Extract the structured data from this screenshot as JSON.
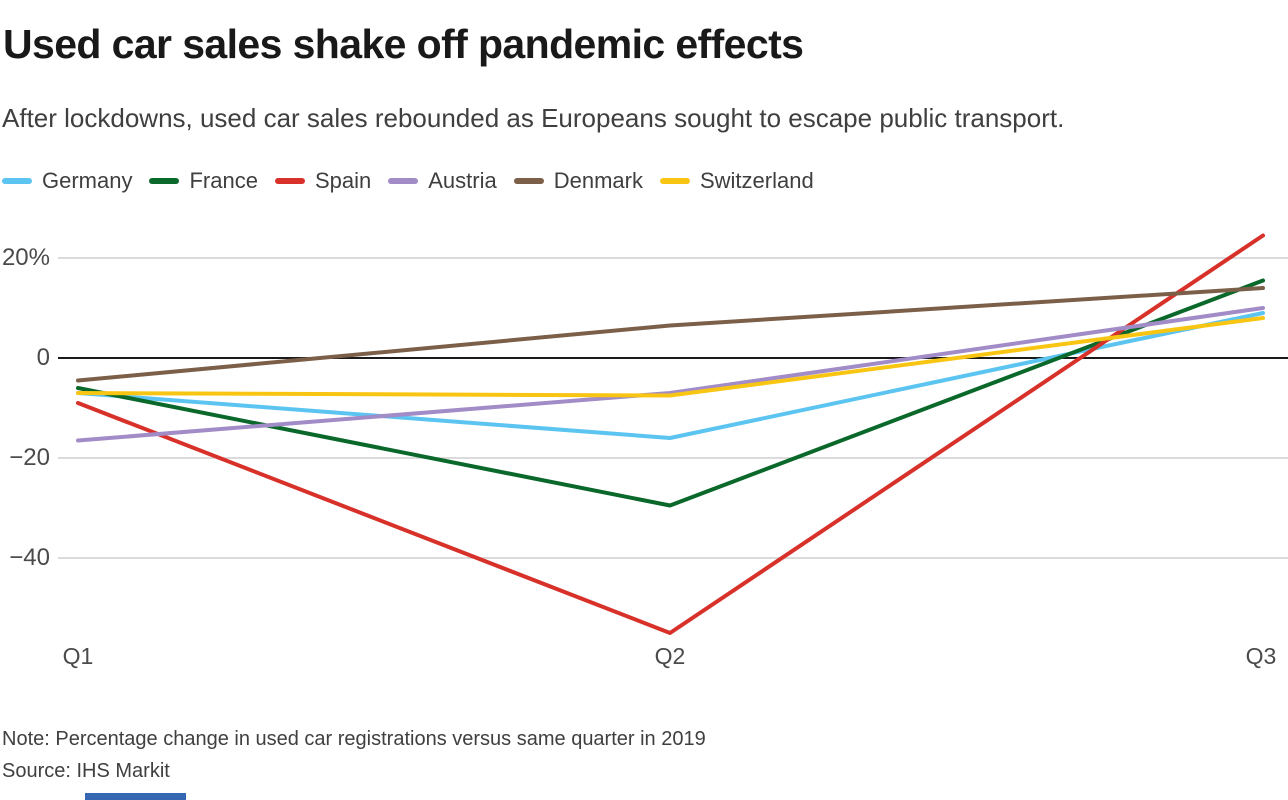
{
  "chart_data": {
    "type": "line",
    "title": "Used car sales shake off pandemic effects",
    "subtitle": "After lockdowns, used car sales rebounded as Europeans sought to escape public transport.",
    "categories": [
      "Q1",
      "Q2",
      "Q3"
    ],
    "series": [
      {
        "name": "Germany",
        "color": "#5bc4f0",
        "values": [
          -7,
          -16,
          9
        ]
      },
      {
        "name": "France",
        "color": "#0a682b",
        "values": [
          -6,
          -29.5,
          15.5
        ]
      },
      {
        "name": "Spain",
        "color": "#d7312a",
        "values": [
          -9,
          -55,
          24.5
        ]
      },
      {
        "name": "Austria",
        "color": "#a18cc8",
        "values": [
          -16.5,
          -7,
          10
        ]
      },
      {
        "name": "Denmark",
        "color": "#7c5f48",
        "values": [
          -4.5,
          6.5,
          14
        ]
      },
      {
        "name": "Switzerland",
        "color": "#f9c513",
        "values": [
          -7,
          -7.5,
          8
        ]
      }
    ],
    "yticks": [
      {
        "label": "20%",
        "value": 20
      },
      {
        "label": "0",
        "value": 0
      },
      {
        "label": "−20",
        "value": -20
      },
      {
        "label": "−40",
        "value": -40
      }
    ],
    "ylim": [
      -58,
      26
    ],
    "grid": "horizontal",
    "grid_color": "#cfcfcf",
    "zero_line_color": "#1a1a1a",
    "legend_position": "top"
  },
  "footer": {
    "note": "Note: Percentage change in used car registrations versus same quarter in 2019",
    "source": "Source: IHS Markit",
    "bar_color": "#3567b3"
  }
}
